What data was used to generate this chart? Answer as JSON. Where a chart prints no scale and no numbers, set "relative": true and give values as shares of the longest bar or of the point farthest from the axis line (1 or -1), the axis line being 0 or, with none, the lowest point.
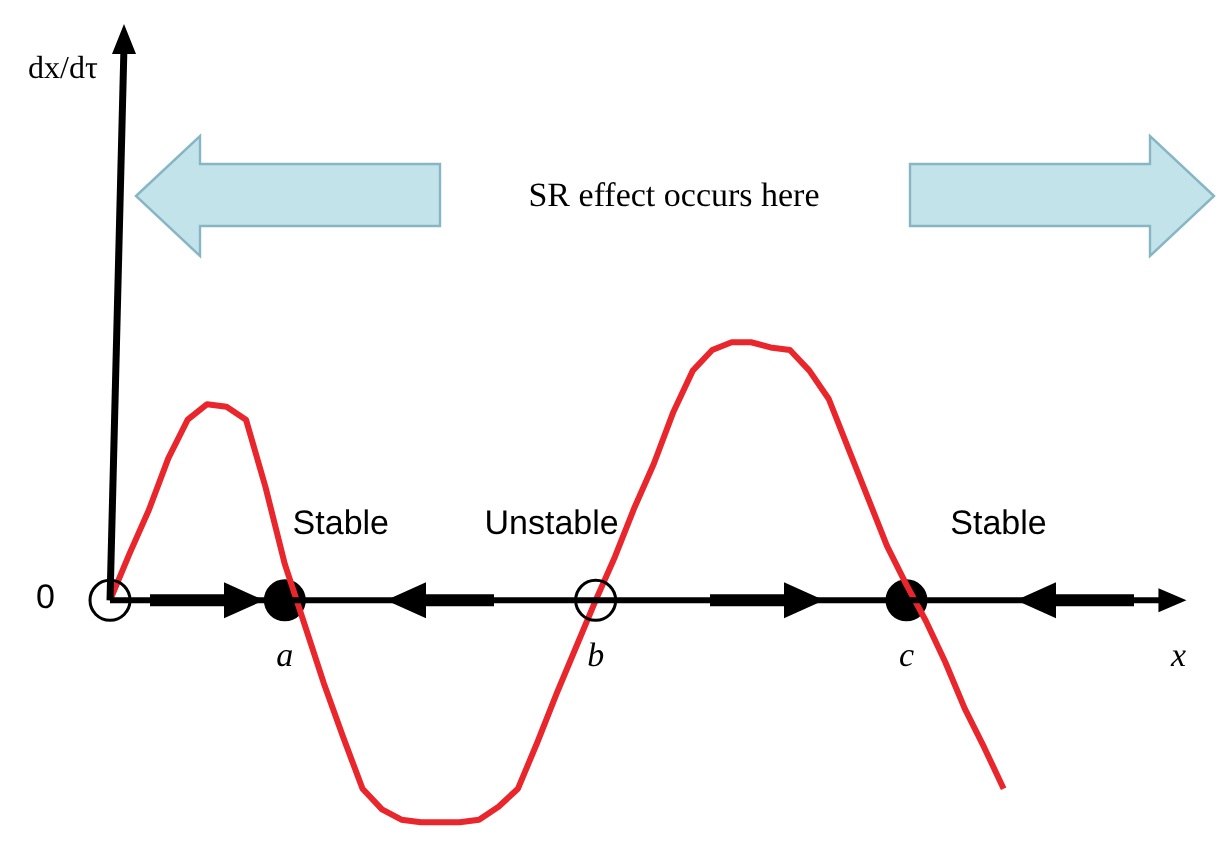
{
  "chart_data": {
    "type": "line",
    "relative": true,
    "marker": "none",
    "categories": [
      null,
      null,
      null,
      null,
      null,
      null,
      null,
      null,
      null,
      "a",
      null,
      null,
      null,
      null,
      null,
      null,
      null,
      null,
      null,
      null,
      null,
      null,
      null,
      null,
      null,
      "b",
      null,
      null,
      null,
      null,
      null,
      null,
      null,
      null,
      null,
      null,
      null,
      null,
      null,
      null,
      null,
      "c",
      null,
      null,
      null,
      null,
      null,
      null,
      null,
      null,
      null,
      null,
      null,
      null,
      null,
      "x"
    ],
    "series": [
      {
        "color": "#e8262b",
        "values": [
          0,
          0.18,
          0.35,
          0.55,
          0.7,
          0.76,
          0.75,
          0.7,
          0.44,
          0.14,
          -0.09,
          -0.32,
          -0.53,
          -0.73,
          -0.81,
          -0.85,
          -0.86,
          -0.86,
          -0.86,
          -0.85,
          -0.8,
          -0.73,
          -0.55,
          -0.36,
          -0.18,
          0,
          0.17,
          0.36,
          0.53,
          0.73,
          0.89,
          0.97,
          1,
          1,
          0.98,
          0.97,
          0.89,
          0.78,
          0.59,
          0.4,
          0.21,
          0.06,
          -0.08,
          -0.24,
          -0.42,
          -0.57,
          -0.73,
          null,
          null,
          null,
          null,
          null,
          null,
          null,
          null,
          null
        ]
      },
      {
        "type": "scatter",
        "marker": "circle",
        "color": "#000000",
        "x": [
          "a",
          "c"
        ],
        "values": [
          0,
          0
        ]
      }
    ],
    "annotations": [
      "SR effect occurs here",
      "Stable",
      "Unstable",
      "Stable",
      "0",
      "dx/dτ"
    ]
  }
}
